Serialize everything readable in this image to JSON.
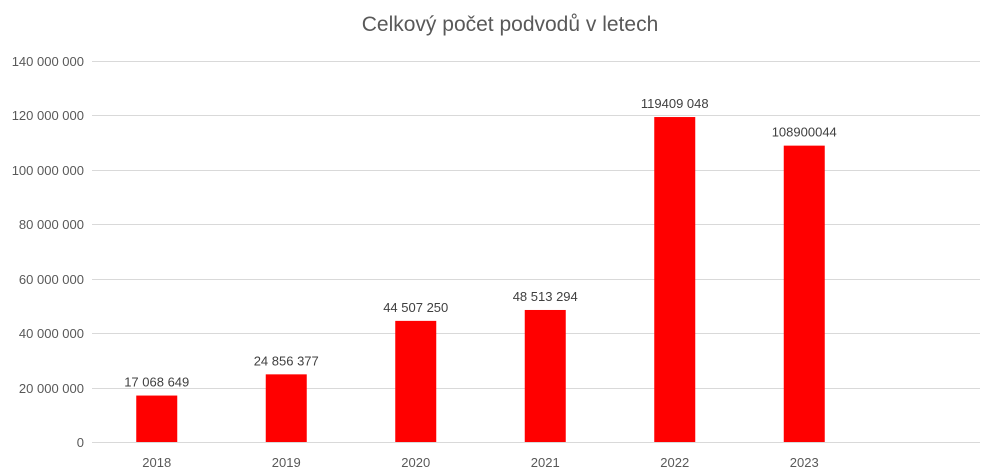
{
  "chart_data": {
    "type": "bar",
    "title": "Celkový počet podvodů v letech",
    "xlabel": "",
    "ylabel": "",
    "categories": [
      "2018",
      "2019",
      "2020",
      "2021",
      "2022",
      "2023"
    ],
    "values": [
      17068649,
      24856377,
      44507250,
      48513294,
      119409048,
      108900044
    ],
    "data_labels": [
      "17 068 649",
      "24 856 377",
      "44 507 250",
      "48 513 294",
      "119409 048",
      "108900044"
    ],
    "ylim": [
      0,
      140000000
    ],
    "y_ticks": [
      0,
      20000000,
      40000000,
      60000000,
      80000000,
      100000000,
      120000000,
      140000000
    ],
    "y_tick_labels": [
      "0",
      "20 000 000",
      "40 000 000",
      "60 000 000",
      "80 000 000",
      "100 000 000",
      "120 000 000",
      "140 000 000"
    ],
    "grid": true,
    "legend": "none",
    "bar_color": "#ff0000",
    "grid_color": "#d9d9d9",
    "text_color": "#595959"
  }
}
